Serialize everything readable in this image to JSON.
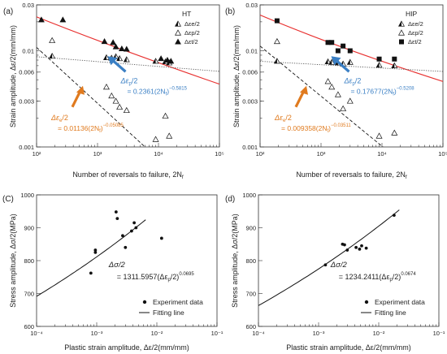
{
  "chart_data": [
    {
      "panel": "(a)",
      "type": "scatter",
      "xscale": "log",
      "yscale": "log",
      "xlim": [
        100,
        100000
      ],
      "ylim": [
        0.001,
        0.03
      ],
      "xticks": [
        100,
        1000,
        10000,
        100000
      ],
      "xtick_labels": [
        "10²",
        "10³",
        "10⁴",
        "10⁵"
      ],
      "yticks": [
        0.001,
        0.003,
        0.006,
        0.01,
        0.03
      ],
      "ytick_labels": [
        "0.001",
        "0.003",
        "0.006",
        "0.01",
        "0.03"
      ],
      "xlabel": "Number of reversals to failure, 2N",
      "xlabel_sub": "f",
      "ylabel": "Strain amplitude, Δε/2(mm/mm)",
      "legend_title": "HT",
      "legend": [
        "Δεe/2",
        "Δεp/2",
        "Δεt/2"
      ],
      "series": [
        {
          "name": "Δεe/2",
          "marker": "tri-half",
          "points": [
            [
              180,
              0.0088
            ],
            [
              1400,
              0.0085
            ],
            [
              1700,
              0.0084
            ],
            [
              2000,
              0.0087
            ],
            [
              2300,
              0.0083
            ],
            [
              3000,
              0.0081
            ],
            [
              9000,
              0.0078
            ],
            [
              13000,
              0.0077
            ],
            [
              15000,
              0.0075
            ]
          ]
        },
        {
          "name": "Δεp/2",
          "marker": "tri-open",
          "points": [
            [
              180,
              0.0128
            ],
            [
              1400,
              0.0042
            ],
            [
              1700,
              0.0034
            ],
            [
              2000,
              0.003
            ],
            [
              2300,
              0.0026
            ],
            [
              3000,
              0.0024
            ],
            [
              9000,
              0.0012
            ],
            [
              13000,
              0.0021
            ],
            [
              15000,
              0.0013
            ]
          ]
        },
        {
          "name": "Δεt/2",
          "marker": "tri-filled",
          "points": [
            [
              120,
              0.021
            ],
            [
              270,
              0.021
            ],
            [
              1300,
              0.0125
            ],
            [
              1800,
              0.0122
            ],
            [
              2000,
              0.011
            ],
            [
              2500,
              0.0105
            ],
            [
              3000,
              0.0104
            ],
            [
              11000,
              0.0083
            ],
            [
              14000,
              0.008
            ],
            [
              16000,
              0.0078
            ]
          ]
        }
      ],
      "fit_total": {
        "color": "#e8302f",
        "from": [
          100,
          0.0225
        ],
        "to": [
          100000,
          0.0045
        ]
      },
      "fit_elastic": {
        "coef": 0.01136,
        "exp": -0.05085,
        "x_range": [
          100,
          100000
        ]
      },
      "fit_plastic": {
        "coef": 0.2361,
        "exp": -0.5815,
        "x_range": [
          100,
          20000
        ]
      },
      "annot_plastic": {
        "line1": "Δε",
        "line1_sub": "p",
        "line1_tail": "/2",
        "line2_pre": "= 0.2361(2N",
        "line2_sub": "f",
        "line2_post": ")",
        "exp": "−0.5815",
        "color": "#3a7fc4"
      },
      "annot_elastic": {
        "line1": "Δε",
        "line1_sub": "e",
        "line1_tail": "/2",
        "line2_pre": "= 0.01136(2N",
        "line2_sub": "f",
        "line2_post": ")",
        "exp": "−0.05085",
        "color": "#e07a1e"
      }
    },
    {
      "panel": "(b)",
      "type": "scatter",
      "xscale": "log",
      "yscale": "log",
      "xlim": [
        100,
        100000
      ],
      "ylim": [
        0.001,
        0.03
      ],
      "xticks": [
        100,
        1000,
        10000,
        100000
      ],
      "xtick_labels": [
        "10²",
        "10³",
        "10⁴",
        "10⁵"
      ],
      "yticks": [
        0.001,
        0.003,
        0.006,
        0.01,
        0.03
      ],
      "ytick_labels": [
        "0.001",
        "0.003",
        "0.006",
        "0.01",
        "0.03"
      ],
      "xlabel": "Number of reversals to failure, 2N",
      "xlabel_sub": "f",
      "ylabel": "Strain amplitude, Δε/2(mm/mm)",
      "legend_title": "HIP",
      "legend": [
        "Δεe/2",
        "Δεp/2",
        "Δεt/2"
      ],
      "series": [
        {
          "name": "Δεe/2",
          "marker": "tri-half",
          "points": [
            [
              190,
              0.0078
            ],
            [
              1300,
              0.0077
            ],
            [
              1500,
              0.0076
            ],
            [
              1900,
              0.0075
            ],
            [
              2300,
              0.0073
            ],
            [
              3000,
              0.0076
            ],
            [
              9000,
              0.0071
            ],
            [
              16000,
              0.007
            ]
          ]
        },
        {
          "name": "Δεp/2",
          "marker": "tri-open",
          "points": [
            [
              190,
              0.0125
            ],
            [
              1300,
              0.0048
            ],
            [
              1500,
              0.0042
            ],
            [
              1900,
              0.0035
            ],
            [
              2300,
              0.0025
            ],
            [
              3000,
              0.003
            ],
            [
              9000,
              0.0013
            ],
            [
              16000,
              0.0014
            ]
          ]
        },
        {
          "name": "Δεt/2",
          "marker": "square",
          "points": [
            [
              190,
              0.0205
            ],
            [
              1300,
              0.0122
            ],
            [
              1500,
              0.0122
            ],
            [
              1900,
              0.01
            ],
            [
              2300,
              0.0112
            ],
            [
              3000,
              0.01
            ],
            [
              9000,
              0.0082
            ],
            [
              16000,
              0.0082
            ]
          ]
        }
      ],
      "fit_total": {
        "color": "#e8302f",
        "from": [
          100,
          0.0235
        ],
        "to": [
          100000,
          0.0048
        ]
      },
      "fit_elastic": {
        "coef": 0.009358,
        "exp": -0.03511,
        "x_range": [
          100,
          100000
        ]
      },
      "fit_plastic": {
        "coef": 0.17677,
        "exp": -0.5208,
        "x_range": [
          100,
          20000
        ]
      },
      "annot_plastic": {
        "line1": "Δε",
        "line1_sub": "p",
        "line1_tail": "/2",
        "line2_pre": "= 0.17677(2N",
        "line2_sub": "f",
        "line2_post": ")",
        "exp": "−0.5208",
        "color": "#3a7fc4"
      },
      "annot_elastic": {
        "line1": "Δε",
        "line1_sub": "e",
        "line1_tail": "/2",
        "line2_pre": "= 0.009358(2N",
        "line2_sub": "f",
        "line2_post": ")",
        "exp": "−0.03511",
        "color": "#e07a1e"
      }
    },
    {
      "panel": "(C)",
      "type": "scatter",
      "xscale": "log",
      "yscale": "linear",
      "xlim": [
        0.0001,
        0.1
      ],
      "ylim": [
        600,
        1000
      ],
      "xticks": [
        0.0001,
        0.001,
        0.01,
        0.1
      ],
      "xtick_labels": [
        "10⁻⁴",
        "10⁻³",
        "10⁻²",
        "10⁻¹"
      ],
      "yticks": [
        600,
        700,
        800,
        900,
        1000
      ],
      "ytick_labels": [
        "600",
        "700",
        "800",
        "900",
        "1000"
      ],
      "xlabel": "Plastic strain amplitude, Δε/2(mm/mm)",
      "ylabel": "Stress amplitude, Δσ/2(MPa)",
      "legend": [
        "Experiment data",
        "Fitting line"
      ],
      "points": [
        [
          0.0008,
          762
        ],
        [
          0.00095,
          825
        ],
        [
          0.00095,
          832
        ],
        [
          0.0021,
          948
        ],
        [
          0.0022,
          928
        ],
        [
          0.0027,
          876
        ],
        [
          0.003,
          840
        ],
        [
          0.0038,
          890
        ],
        [
          0.0042,
          915
        ],
        [
          0.0045,
          900
        ],
        [
          0.012,
          868
        ]
      ],
      "fit": {
        "coef": 1311.5957,
        "exp": 0.0695,
        "x_range": [
          0.0001,
          0.0065
        ]
      },
      "annot": {
        "line1": "Δσ/2",
        "line2_pre": "= 1311.5957(Δε",
        "line2_sub": "p",
        "line2_post": "/2)",
        "exp": "0.0695"
      }
    },
    {
      "panel": "(d)",
      "type": "scatter",
      "xscale": "log",
      "yscale": "linear",
      "xlim": [
        0.0001,
        0.1
      ],
      "ylim": [
        600,
        1000
      ],
      "xticks": [
        0.0001,
        0.001,
        0.01,
        0.1
      ],
      "xtick_labels": [
        "10⁻⁴",
        "10⁻³",
        "10⁻²",
        "10⁻¹"
      ],
      "yticks": [
        600,
        700,
        800,
        900,
        1000
      ],
      "ytick_labels": [
        "600",
        "700",
        "800",
        "900",
        "1000"
      ],
      "xlabel": "Plastic strain amplitude, Δε/2(mm/mm)",
      "ylabel": "Stress amplitude, Δσ/2(MPa)",
      "legend": [
        "Experiment data",
        "Fitting line"
      ],
      "points": [
        [
          0.0013,
          787
        ],
        [
          0.0025,
          850
        ],
        [
          0.0027,
          848
        ],
        [
          0.003,
          832
        ],
        [
          0.0042,
          840
        ],
        [
          0.0048,
          835
        ],
        [
          0.0052,
          845
        ],
        [
          0.0062,
          838
        ],
        [
          0.018,
          938
        ]
      ],
      "fit": {
        "coef": 1234.2411,
        "exp": 0.0674,
        "x_range": [
          0.0001,
          0.022
        ]
      },
      "annot": {
        "line1": "Δσ/2",
        "line2_pre": "= 1234.2411(Δε",
        "line2_sub": "p",
        "line2_post": "/2)",
        "exp": "0.0674"
      }
    }
  ]
}
